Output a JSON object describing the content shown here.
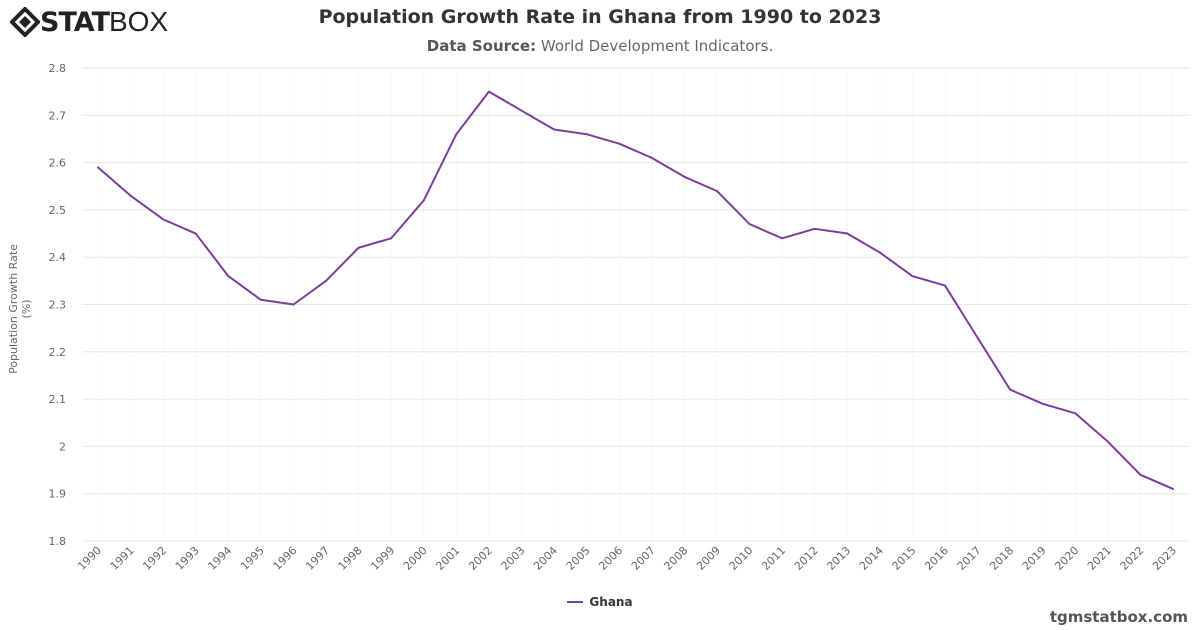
{
  "logo": {
    "text_bold": "STAT",
    "text_thin": "BOX"
  },
  "credit": "tgmstatbox.com",
  "colors": {
    "series": "#7b3f98",
    "grid": "#e6e6e6"
  },
  "chart_data": {
    "type": "line",
    "title": "Population Growth Rate in Ghana from 1990 to 2023",
    "subtitle_label": "Data Source:",
    "subtitle_value": "World Development Indicators.",
    "xlabel": "",
    "ylabel": "Population Growth Rate (%)",
    "ylim": [
      1.8,
      2.8
    ],
    "yticks": [
      "1.8",
      "1.9",
      "2",
      "2.1",
      "2.2",
      "2.3",
      "2.4",
      "2.5",
      "2.6",
      "2.7",
      "2.8"
    ],
    "grid": true,
    "legend_position": "bottom",
    "x": [
      1990,
      1991,
      1992,
      1993,
      1994,
      1995,
      1996,
      1997,
      1998,
      1999,
      2000,
      2001,
      2002,
      2003,
      2004,
      2005,
      2006,
      2007,
      2008,
      2009,
      2010,
      2011,
      2012,
      2013,
      2014,
      2015,
      2016,
      2017,
      2018,
      2019,
      2020,
      2021,
      2022,
      2023
    ],
    "series": [
      {
        "name": "Ghana",
        "values": [
          2.59,
          2.53,
          2.48,
          2.45,
          2.36,
          2.31,
          2.3,
          2.35,
          2.42,
          2.44,
          2.52,
          2.66,
          2.75,
          2.71,
          2.67,
          2.66,
          2.64,
          2.61,
          2.57,
          2.54,
          2.47,
          2.44,
          2.46,
          2.45,
          2.41,
          2.36,
          2.34,
          2.23,
          2.12,
          2.09,
          2.07,
          2.01,
          1.94,
          1.91
        ]
      }
    ]
  }
}
